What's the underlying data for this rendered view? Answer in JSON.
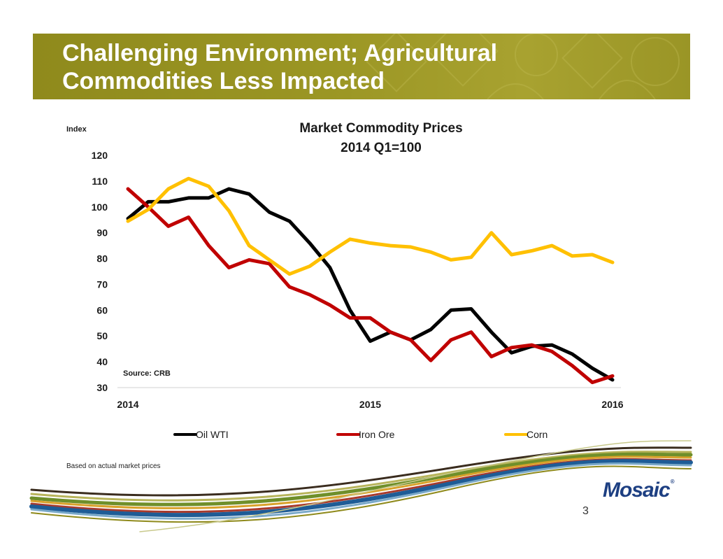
{
  "slide": {
    "title_line1": "Challenging Environment; Agricultural",
    "title_line2": "Commodities Less Impacted",
    "footnote": "Based on actual market prices",
    "page_number": "3",
    "logo_text": "Mosaic",
    "logo_mark": "®",
    "accent_color": "#9b9624"
  },
  "chart_data": {
    "type": "line",
    "title": "Market Commodity Prices",
    "subtitle": "2014 Q1=100",
    "ylabel": "Index",
    "xlabel": "",
    "ylim": [
      30,
      120
    ],
    "yticks": [
      30,
      40,
      50,
      60,
      70,
      80,
      90,
      100,
      110,
      120
    ],
    "x_range": [
      0,
      24
    ],
    "xticks": [
      {
        "x": 0,
        "label": "2014"
      },
      {
        "x": 12,
        "label": "2015"
      },
      {
        "x": 24,
        "label": "2016"
      }
    ],
    "grid": false,
    "legend_position": "bottom",
    "annotation": "Source:  CRB",
    "series": [
      {
        "name": "Oil WTI",
        "color": "#000000",
        "x": [
          0,
          1,
          2,
          3,
          4,
          5,
          6,
          7,
          8,
          9,
          10,
          11,
          12,
          13,
          14,
          15,
          16,
          17,
          18,
          19,
          20,
          21,
          22,
          23,
          24
        ],
        "values": [
          95.5,
          102,
          102,
          103.5,
          103.5,
          107,
          105,
          98,
          94.5,
          86,
          76.5,
          60,
          48,
          51.5,
          48.5,
          52.5,
          60,
          60.5,
          51.5,
          43.5,
          46,
          46.5,
          43,
          37.5,
          33
        ]
      },
      {
        "name": "Iron Ore",
        "color": "#c00000",
        "x": [
          0,
          1,
          2,
          3,
          4,
          5,
          6,
          7,
          8,
          9,
          10,
          11,
          12,
          13,
          14,
          15,
          16,
          17,
          18,
          19,
          20,
          21,
          22,
          23,
          24
        ],
        "values": [
          107,
          100,
          92.5,
          96,
          85,
          76.5,
          79.5,
          78,
          69,
          66,
          62,
          57,
          57,
          51.5,
          48.5,
          40.5,
          48.5,
          51.5,
          42,
          45.5,
          46.5,
          44,
          38.5,
          32,
          34.5
        ]
      },
      {
        "name": "Corn",
        "color": "#ffc000",
        "x": [
          0,
          1,
          2,
          3,
          4,
          5,
          6,
          7,
          8,
          9,
          10,
          11,
          12,
          13,
          14,
          15,
          16,
          17,
          18,
          19,
          20,
          21,
          22,
          23,
          24
        ],
        "values": [
          94.5,
          99,
          107,
          111,
          108,
          98.5,
          85,
          79.5,
          74,
          77,
          82.5,
          87.5,
          86,
          85,
          84.5,
          82.5,
          79.5,
          80.5,
          90,
          81.5,
          83,
          85,
          81,
          81.5,
          78.5
        ]
      }
    ]
  }
}
